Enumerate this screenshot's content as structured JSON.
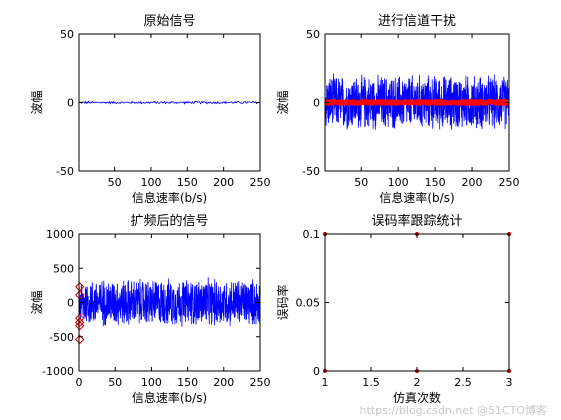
{
  "chart_data": [
    {
      "type": "line",
      "title": "原始信号",
      "xlabel": "信息速率(b/s)",
      "ylabel": "波幅",
      "xlim": [
        1,
        250
      ],
      "ylim": [
        -50,
        50
      ],
      "xticks": [
        50,
        100,
        150,
        200,
        250
      ],
      "yticks": [
        -50,
        0,
        50
      ],
      "series": [
        {
          "type": "noise",
          "color": "#0000ff",
          "mean": 0,
          "amplitude": 1,
          "n": 250
        }
      ]
    },
    {
      "type": "line",
      "title": "进行信道干扰",
      "xlabel": "信息速率(b/s)",
      "ylabel": "波幅",
      "xlim": [
        1,
        250
      ],
      "ylim": [
        -50,
        50
      ],
      "xticks": [
        50,
        100,
        150,
        200,
        250
      ],
      "yticks": [
        -50,
        0,
        50
      ],
      "series": [
        {
          "type": "noise",
          "color": "#0000ff",
          "mean": 0,
          "amplitude": 22,
          "n": 1000
        },
        {
          "type": "markers",
          "color": "#ff0000",
          "mean": 0,
          "amplitude": 1,
          "n": 250,
          "marker": "dot"
        }
      ]
    },
    {
      "type": "line",
      "title": "扩频后的信号",
      "xlabel": "信息速率(b/s)",
      "ylabel": "波幅",
      "xlim": [
        0,
        250
      ],
      "ylim": [
        -1000,
        1000
      ],
      "xticks": [
        0,
        50,
        100,
        150,
        200,
        250
      ],
      "yticks": [
        -1000,
        -500,
        0,
        500,
        1000
      ],
      "series": [
        {
          "type": "noise",
          "color": "#0000ff",
          "mean": 0,
          "amplitude": 380,
          "n": 1000
        },
        {
          "type": "points",
          "color": "#cc0000",
          "marker": "diamond",
          "x": [
            1,
            1,
            1,
            1,
            1,
            1
          ],
          "y": [
            230,
            110,
            -230,
            -290,
            -340,
            -540
          ]
        }
      ]
    },
    {
      "type": "line",
      "title": "误码率跟踪统计",
      "xlabel": "仿真次数",
      "ylabel": "误码率",
      "xlim": [
        1,
        3
      ],
      "ylim": [
        0,
        0.1
      ],
      "xticks": [
        1,
        1.5,
        2,
        2.5,
        3
      ],
      "yticks": [
        0,
        0.05,
        0.1
      ],
      "series": [
        {
          "type": "points",
          "color": "#cc0000",
          "marker": "dot",
          "x": [
            1,
            2,
            3
          ],
          "y": [
            0.1,
            0.1,
            0.1
          ]
        },
        {
          "type": "points",
          "color": "#cc0000",
          "marker": "dot",
          "x": [
            1,
            2,
            3
          ],
          "y": [
            0,
            0,
            0
          ]
        }
      ]
    }
  ],
  "watermark": "https://blog.csdn.net @51CTO博客"
}
